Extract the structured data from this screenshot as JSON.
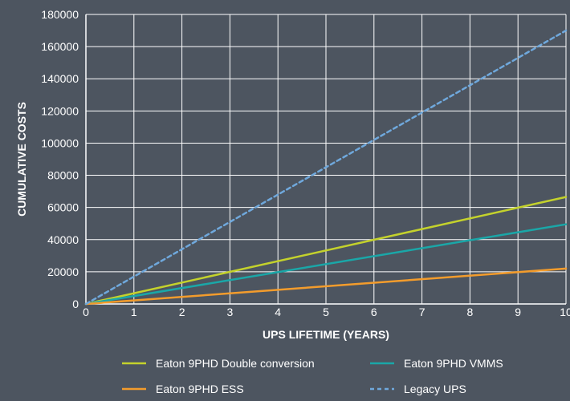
{
  "chart_data": {
    "type": "line",
    "title": "",
    "xlabel": "UPS LIFETIME (YEARS)",
    "ylabel": "CUMULATIVE COSTS",
    "xlim": [
      0,
      10
    ],
    "ylim": [
      0,
      180000
    ],
    "x_ticks": [
      "0",
      "1",
      "2",
      "3",
      "4",
      "5",
      "6",
      "7",
      "8",
      "9",
      "10"
    ],
    "y_ticks": [
      "0",
      "20000",
      "40000",
      "60000",
      "80000",
      "100000",
      "120000",
      "140000",
      "160000",
      "180000"
    ],
    "grid": true,
    "legend_position": "bottom",
    "x": [
      0,
      10
    ],
    "series": [
      {
        "name": "Eaton 9PHD Double conversion",
        "color": "#c4d22c",
        "dash": "solid",
        "values": [
          0,
          66500
        ]
      },
      {
        "name": "Eaton 9PHD VMMS",
        "color": "#1aa7a8",
        "dash": "solid",
        "values": [
          0,
          49500
        ]
      },
      {
        "name": "Eaton 9PHD ESS",
        "color": "#f39c2c",
        "dash": "solid",
        "values": [
          0,
          22000
        ]
      },
      {
        "name": "Legacy UPS",
        "color": "#6fa8dc",
        "dash": "dashed",
        "values": [
          0,
          170000
        ]
      }
    ]
  }
}
